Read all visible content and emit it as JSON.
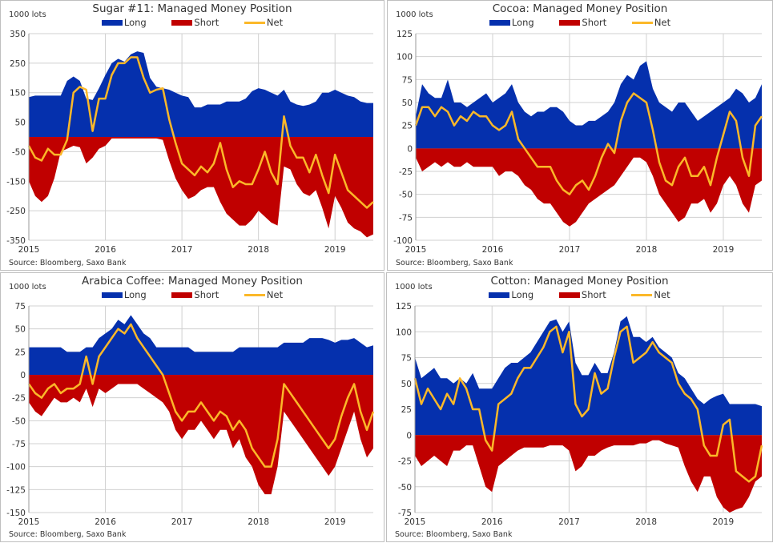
{
  "colors": {
    "long": "#0530ad",
    "short": "#c00000",
    "net": "#fbb829",
    "grid": "#d0d0d0"
  },
  "legend": {
    "long": "Long",
    "short": "Short",
    "net": "Net"
  },
  "chart_data": [
    {
      "type": "area",
      "title": "Sugar #11: Managed Money Position",
      "unit": "1000 lots",
      "source": "Source: Bloomberg, Saxo Bank",
      "x_start": 2015,
      "x_step_years": 0.08333,
      "xlim": [
        2015,
        2019.5
      ],
      "x_ticks": [
        "2015",
        "2016",
        "2017",
        "2018",
        "2019"
      ],
      "ylim": [
        -350,
        350
      ],
      "y_ticks": [
        350,
        250,
        150,
        50,
        -50,
        -150,
        -250,
        -350
      ],
      "y_tick_labels": [
        "350",
        "250",
        "150",
        "50",
        "-50",
        "-150",
        "-250",
        "-350"
      ],
      "series": [
        {
          "name": "Long",
          "values": [
            135,
            140,
            140,
            140,
            140,
            140,
            190,
            205,
            190,
            130,
            125,
            165,
            210,
            250,
            265,
            255,
            280,
            290,
            285,
            200,
            170,
            165,
            160,
            150,
            140,
            135,
            100,
            100,
            110,
            110,
            110,
            120,
            120,
            120,
            130,
            155,
            165,
            160,
            150,
            140,
            160,
            120,
            110,
            105,
            110,
            120,
            150,
            150,
            160,
            150,
            140,
            135,
            120,
            115,
            115
          ]
        },
        {
          "name": "Short",
          "values": [
            -150,
            -200,
            -220,
            -200,
            -140,
            -50,
            -40,
            -30,
            -35,
            -90,
            -70,
            -40,
            -30,
            -5,
            -5,
            -5,
            -5,
            -5,
            -5,
            -5,
            -5,
            -10,
            -80,
            -140,
            -180,
            -210,
            -200,
            -180,
            -170,
            -170,
            -220,
            -260,
            -280,
            -300,
            -300,
            -280,
            -250,
            -270,
            -290,
            -300,
            -100,
            -110,
            -160,
            -190,
            -200,
            -180,
            -240,
            -310,
            -200,
            -240,
            -290,
            -310,
            -320,
            -340,
            -330
          ]
        },
        {
          "name": "Net",
          "values": [
            -30,
            -70,
            -80,
            -40,
            -60,
            -60,
            -10,
            150,
            170,
            160,
            20,
            130,
            130,
            210,
            250,
            250,
            270,
            270,
            200,
            150,
            160,
            165,
            60,
            -20,
            -90,
            -110,
            -130,
            -100,
            -120,
            -90,
            -20,
            -110,
            -170,
            -150,
            -160,
            -160,
            -110,
            -50,
            -120,
            -160,
            70,
            -30,
            -70,
            -70,
            -120,
            -60,
            -130,
            -190,
            -60,
            -120,
            -180,
            -200,
            -220,
            -240,
            -220
          ]
        }
      ]
    },
    {
      "type": "area",
      "title": "Cocoa: Managed Money Position",
      "unit": "1000 lots",
      "source": "Source: Bloomberg, Saxo Bank",
      "x_start": 2015,
      "x_step_years": 0.08333,
      "xlim": [
        2015,
        2019.5
      ],
      "x_ticks": [
        "2015",
        "2016",
        "2017",
        "2018",
        "2019"
      ],
      "ylim": [
        -100,
        125
      ],
      "y_ticks": [
        125,
        100,
        75,
        50,
        25,
        0,
        -25,
        -50,
        -75,
        -100
      ],
      "y_tick_labels": [
        "125",
        "100",
        "75",
        "50",
        "25",
        "0",
        "-25",
        "-50",
        "-75",
        "-100"
      ],
      "series": [
        {
          "name": "Long",
          "values": [
            35,
            70,
            60,
            55,
            55,
            75,
            50,
            50,
            45,
            50,
            55,
            60,
            50,
            55,
            60,
            70,
            50,
            40,
            35,
            40,
            40,
            45,
            45,
            40,
            30,
            25,
            25,
            30,
            30,
            35,
            40,
            50,
            70,
            80,
            75,
            90,
            95,
            65,
            50,
            45,
            40,
            50,
            50,
            40,
            30,
            35,
            40,
            45,
            50,
            55,
            65,
            60,
            50,
            55,
            70
          ]
        },
        {
          "name": "Short",
          "values": [
            -10,
            -25,
            -20,
            -15,
            -20,
            -15,
            -20,
            -20,
            -15,
            -20,
            -20,
            -20,
            -20,
            -30,
            -25,
            -25,
            -30,
            -40,
            -45,
            -55,
            -60,
            -60,
            -70,
            -80,
            -85,
            -80,
            -70,
            -60,
            -55,
            -50,
            -45,
            -40,
            -30,
            -20,
            -10,
            -10,
            -15,
            -30,
            -50,
            -60,
            -70,
            -80,
            -75,
            -60,
            -60,
            -55,
            -70,
            -60,
            -40,
            -30,
            -40,
            -60,
            -70,
            -40,
            -35
          ]
        },
        {
          "name": "Net",
          "values": [
            25,
            45,
            45,
            35,
            45,
            40,
            25,
            35,
            30,
            40,
            35,
            35,
            25,
            20,
            25,
            40,
            10,
            0,
            -10,
            -20,
            -20,
            -20,
            -35,
            -45,
            -50,
            -40,
            -35,
            -45,
            -30,
            -10,
            5,
            -5,
            30,
            50,
            60,
            55,
            50,
            20,
            -15,
            -35,
            -40,
            -20,
            -10,
            -30,
            -30,
            -20,
            -40,
            -10,
            15,
            40,
            30,
            -10,
            -30,
            25,
            35
          ]
        }
      ]
    },
    {
      "type": "area",
      "title": "Arabica Coffee: Managed Money Position",
      "unit": "1000 lots",
      "source": "Source: Bloomberg, Saxo Bank",
      "x_start": 2015,
      "x_step_years": 0.08333,
      "xlim": [
        2015,
        2019.5
      ],
      "x_ticks": [
        "2015",
        "2016",
        "2017",
        "2018",
        "2019"
      ],
      "ylim": [
        -150,
        75
      ],
      "y_ticks": [
        75,
        50,
        25,
        0,
        -25,
        -50,
        -75,
        -100,
        -125,
        -150
      ],
      "y_tick_labels": [
        "75",
        "50",
        "25",
        "0",
        "-25",
        "-50",
        "-75",
        "-100",
        "-125",
        "-150"
      ],
      "series": [
        {
          "name": "Long",
          "values": [
            30,
            30,
            30,
            30,
            30,
            30,
            25,
            25,
            25,
            30,
            30,
            40,
            45,
            50,
            60,
            55,
            65,
            55,
            45,
            40,
            30,
            30,
            30,
            30,
            30,
            30,
            25,
            25,
            25,
            25,
            25,
            25,
            25,
            30,
            30,
            30,
            30,
            30,
            30,
            30,
            35,
            35,
            35,
            35,
            40,
            40,
            40,
            38,
            35,
            38,
            38,
            40,
            35,
            30,
            32
          ]
        },
        {
          "name": "Short",
          "values": [
            -30,
            -40,
            -45,
            -35,
            -25,
            -30,
            -30,
            -25,
            -30,
            -15,
            -35,
            -15,
            -20,
            -15,
            -10,
            -10,
            -10,
            -10,
            -15,
            -20,
            -25,
            -30,
            -40,
            -60,
            -70,
            -60,
            -60,
            -50,
            -60,
            -70,
            -60,
            -60,
            -80,
            -70,
            -90,
            -100,
            -120,
            -130,
            -130,
            -100,
            -40,
            -50,
            -60,
            -70,
            -80,
            -90,
            -100,
            -110,
            -100,
            -80,
            -60,
            -40,
            -70,
            -90,
            -80
          ]
        },
        {
          "name": "Net",
          "values": [
            -10,
            -20,
            -25,
            -15,
            -10,
            -20,
            -15,
            -15,
            -10,
            20,
            -10,
            20,
            30,
            40,
            50,
            45,
            55,
            40,
            30,
            20,
            10,
            0,
            -20,
            -40,
            -50,
            -40,
            -40,
            -30,
            -40,
            -50,
            -40,
            -45,
            -60,
            -50,
            -60,
            -80,
            -90,
            -100,
            -100,
            -70,
            -10,
            -20,
            -30,
            -40,
            -50,
            -60,
            -70,
            -80,
            -70,
            -45,
            -25,
            -10,
            -40,
            -60,
            -40
          ]
        }
      ]
    },
    {
      "type": "area",
      "title": "Cotton: Managed Money Position",
      "unit": "1000 lots",
      "source": "Source: Bloomberg, Saxo Bank",
      "x_start": 2015,
      "x_step_years": 0.08333,
      "xlim": [
        2015,
        2019.5
      ],
      "x_ticks": [
        "2015",
        "2016",
        "2017",
        "2018",
        "2019"
      ],
      "ylim": [
        -75,
        125
      ],
      "y_ticks": [
        125,
        100,
        75,
        50,
        25,
        0,
        -25,
        -50,
        -75
      ],
      "y_tick_labels": [
        "125",
        "100",
        "75",
        "50",
        "25",
        "0",
        "-25",
        "-50",
        "-75"
      ],
      "series": [
        {
          "name": "Long",
          "values": [
            75,
            55,
            60,
            65,
            55,
            55,
            50,
            55,
            50,
            60,
            45,
            45,
            45,
            55,
            65,
            70,
            70,
            75,
            80,
            90,
            100,
            110,
            112,
            100,
            110,
            70,
            58,
            58,
            70,
            60,
            60,
            80,
            110,
            115,
            95,
            95,
            90,
            95,
            85,
            80,
            75,
            60,
            55,
            45,
            35,
            30,
            35,
            38,
            40,
            30,
            30,
            30,
            30,
            30,
            28
          ]
        },
        {
          "name": "Short",
          "values": [
            -20,
            -30,
            -25,
            -20,
            -25,
            -30,
            -15,
            -15,
            -10,
            -10,
            -30,
            -50,
            -55,
            -30,
            -25,
            -20,
            -15,
            -12,
            -12,
            -12,
            -12,
            -10,
            -10,
            -10,
            -15,
            -35,
            -30,
            -20,
            -20,
            -15,
            -12,
            -10,
            -10,
            -10,
            -10,
            -8,
            -8,
            -5,
            -5,
            -8,
            -10,
            -12,
            -30,
            -45,
            -55,
            -40,
            -40,
            -60,
            -70,
            -75,
            -72,
            -70,
            -60,
            -45,
            -40
          ]
        },
        {
          "name": "Net",
          "values": [
            55,
            30,
            45,
            35,
            25,
            40,
            30,
            55,
            45,
            25,
            25,
            -5,
            -15,
            30,
            35,
            40,
            55,
            65,
            65,
            75,
            85,
            100,
            105,
            80,
            100,
            30,
            18,
            25,
            60,
            40,
            45,
            75,
            100,
            105,
            70,
            75,
            80,
            90,
            80,
            75,
            70,
            50,
            40,
            35,
            25,
            -10,
            -20,
            -20,
            10,
            15,
            -35,
            -40,
            -45,
            -40,
            -10
          ]
        }
      ]
    }
  ]
}
